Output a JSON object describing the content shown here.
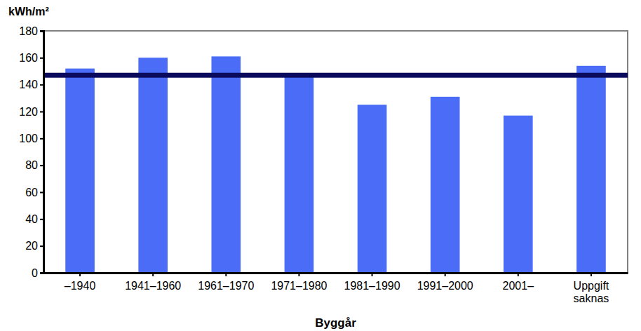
{
  "chart_data": {
    "type": "bar",
    "y_label": "kWh/m²",
    "x_label": "Byggår",
    "categories": [
      "–1940",
      "1941–1960",
      "1961–1970",
      "1971–1980",
      "1981–1990",
      "1991–2000",
      "2001–",
      "Uppgift saknas"
    ],
    "values": [
      152,
      160,
      161,
      146,
      125,
      131,
      117,
      154
    ],
    "color": "#4a6cf7",
    "reference_line": 147,
    "ylim": [
      0,
      180
    ],
    "yticks": [
      0,
      20,
      40,
      60,
      80,
      100,
      120,
      140,
      160,
      180
    ],
    "grid": false
  }
}
